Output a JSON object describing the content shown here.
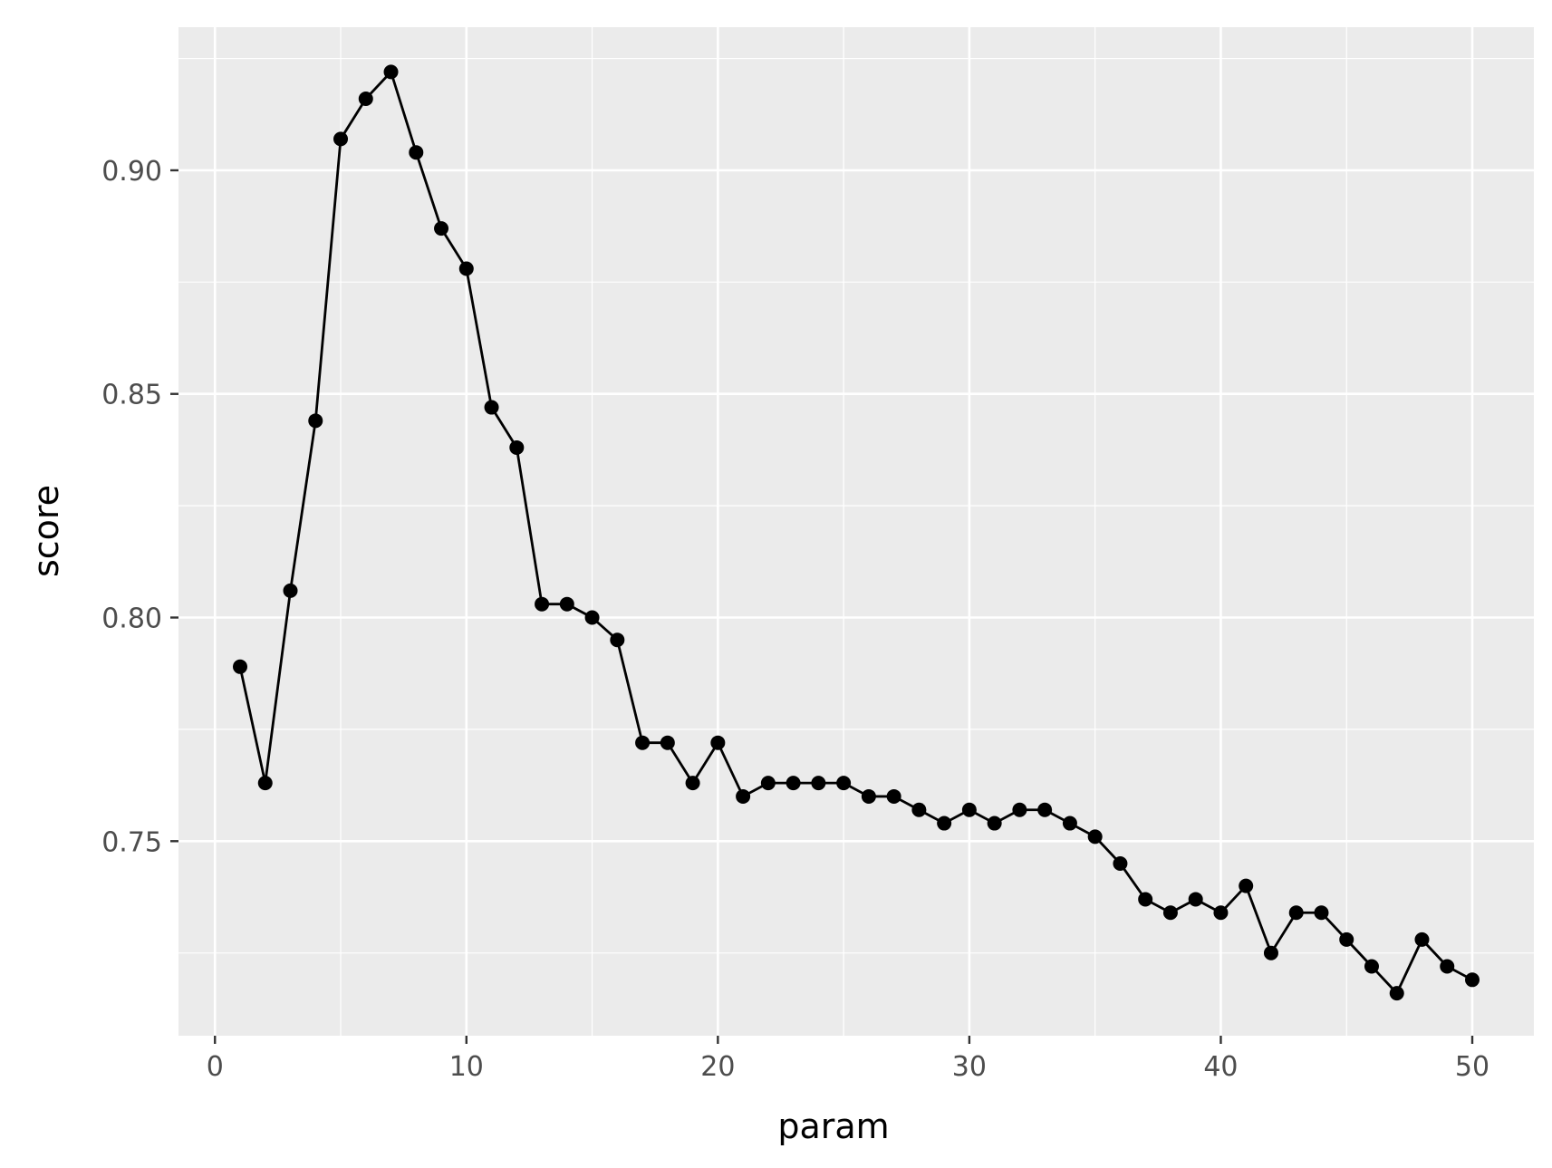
{
  "chart_data": {
    "type": "line",
    "title": "",
    "xlabel": "param",
    "ylabel": "score",
    "xlim": [
      -1.45,
      52.45
    ],
    "ylim": [
      0.7065,
      0.932
    ],
    "x_ticks": [
      0,
      10,
      20,
      30,
      40,
      50
    ],
    "x_tick_labels": [
      "0",
      "10",
      "20",
      "30",
      "40",
      "50"
    ],
    "y_ticks": [
      0.75,
      0.8,
      0.85,
      0.9
    ],
    "y_tick_labels": [
      "0.75",
      "0.80",
      "0.85",
      "0.90"
    ],
    "x_minor_ticks": [
      5,
      15,
      25,
      35,
      45
    ],
    "y_minor_ticks": [
      0.725,
      0.775,
      0.825,
      0.875,
      0.925
    ],
    "grid": true,
    "legend": "none",
    "colors": {
      "panel_background": "#ebebeb",
      "grid": "#ffffff",
      "line": "#000000",
      "point": "#000000",
      "tick": "#333333"
    },
    "series": [
      {
        "x": [
          1,
          2,
          3,
          4,
          5,
          6,
          7,
          8,
          9,
          10,
          11,
          12,
          13,
          14,
          15,
          16,
          17,
          18,
          19,
          20,
          21,
          22,
          23,
          24,
          25,
          26,
          27,
          28,
          29,
          30,
          31,
          32,
          33,
          34,
          35,
          36,
          37,
          38,
          39,
          40,
          41,
          42,
          43,
          44,
          45,
          46,
          47,
          48,
          49,
          50
        ],
        "values": [
          0.789,
          0.763,
          0.806,
          0.844,
          0.907,
          0.916,
          0.922,
          0.904,
          0.887,
          0.878,
          0.847,
          0.838,
          0.803,
          0.803,
          0.8,
          0.795,
          0.772,
          0.772,
          0.763,
          0.772,
          0.76,
          0.763,
          0.763,
          0.763,
          0.763,
          0.76,
          0.76,
          0.757,
          0.754,
          0.757,
          0.754,
          0.757,
          0.757,
          0.754,
          0.751,
          0.745,
          0.737,
          0.734,
          0.737,
          0.734,
          0.74,
          0.725,
          0.734,
          0.734,
          0.728,
          0.722,
          0.716,
          0.728,
          0.722,
          0.719
        ]
      }
    ]
  }
}
